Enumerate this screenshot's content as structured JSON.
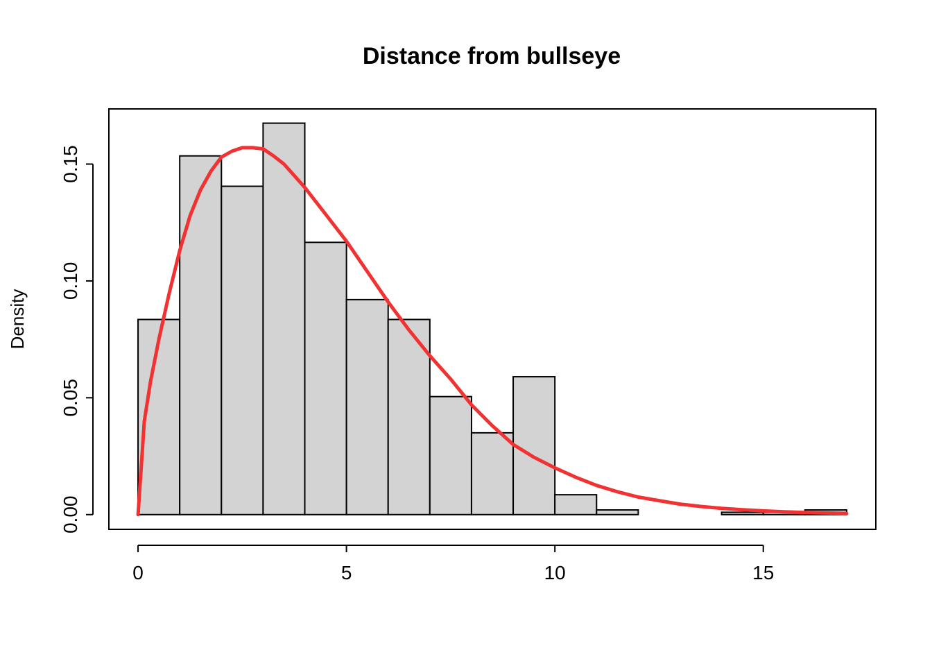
{
  "chart_data": {
    "type": "bar",
    "title": "Distance from bullseye",
    "xlabel": "",
    "ylabel": "Density",
    "xlim": [
      -0.7,
      17.7
    ],
    "ylim": [
      -0.0063,
      0.1736
    ],
    "x_ticks": [
      "0",
      "5",
      "10",
      "15"
    ],
    "y_ticks": [
      "0.00",
      "0.05",
      "0.10",
      "0.15"
    ],
    "bins": [
      {
        "start": 0,
        "end": 1,
        "density": 0.0835
      },
      {
        "start": 1,
        "end": 2,
        "density": 0.1535
      },
      {
        "start": 2,
        "end": 3,
        "density": 0.1405
      },
      {
        "start": 3,
        "end": 4,
        "density": 0.1675
      },
      {
        "start": 4,
        "end": 5,
        "density": 0.1165
      },
      {
        "start": 5,
        "end": 6,
        "density": 0.092
      },
      {
        "start": 6,
        "end": 7,
        "density": 0.0835
      },
      {
        "start": 7,
        "end": 8,
        "density": 0.0505
      },
      {
        "start": 8,
        "end": 9,
        "density": 0.035
      },
      {
        "start": 9,
        "end": 10,
        "density": 0.059
      },
      {
        "start": 10,
        "end": 11,
        "density": 0.0085
      },
      {
        "start": 11,
        "end": 12,
        "density": 0.002
      },
      {
        "start": 12,
        "end": 13,
        "density": 0.0
      },
      {
        "start": 13,
        "end": 14,
        "density": 0.0
      },
      {
        "start": 14,
        "end": 15,
        "density": 0.001
      },
      {
        "start": 15,
        "end": 16,
        "density": 0.001
      },
      {
        "start": 16,
        "end": 17,
        "density": 0.002
      }
    ],
    "curve": {
      "color": "#f03232",
      "points": [
        [
          0,
          0
        ],
        [
          0.15,
          0.04
        ],
        [
          0.3,
          0.057
        ],
        [
          0.5,
          0.075
        ],
        [
          0.75,
          0.095
        ],
        [
          1,
          0.113
        ],
        [
          1.25,
          0.128
        ],
        [
          1.5,
          0.139
        ],
        [
          1.75,
          0.147
        ],
        [
          2,
          0.153
        ],
        [
          2.25,
          0.1555
        ],
        [
          2.5,
          0.157
        ],
        [
          2.75,
          0.157
        ],
        [
          3,
          0.1565
        ],
        [
          3.25,
          0.1535
        ],
        [
          3.5,
          0.15
        ],
        [
          3.75,
          0.145
        ],
        [
          4,
          0.14
        ],
        [
          4.5,
          0.1285
        ],
        [
          5,
          0.117
        ],
        [
          5.5,
          0.104
        ],
        [
          6,
          0.091
        ],
        [
          6.5,
          0.079
        ],
        [
          7,
          0.068
        ],
        [
          7.5,
          0.058
        ],
        [
          8,
          0.047
        ],
        [
          8.5,
          0.038
        ],
        [
          9,
          0.03
        ],
        [
          9.5,
          0.0245
        ],
        [
          10,
          0.02
        ],
        [
          10.5,
          0.016
        ],
        [
          11,
          0.0125
        ],
        [
          11.5,
          0.0098
        ],
        [
          12,
          0.0075
        ],
        [
          12.5,
          0.006
        ],
        [
          13,
          0.0045
        ],
        [
          13.5,
          0.0035
        ],
        [
          14,
          0.0027
        ],
        [
          14.5,
          0.0021
        ],
        [
          15,
          0.0016
        ],
        [
          15.5,
          0.0012
        ],
        [
          16,
          0.0009
        ],
        [
          16.5,
          0.0007
        ],
        [
          17,
          0.0005
        ]
      ]
    },
    "bar_fill": "#d3d3d3",
    "bar_stroke": "#000000",
    "grid": false,
    "legend": "none"
  }
}
